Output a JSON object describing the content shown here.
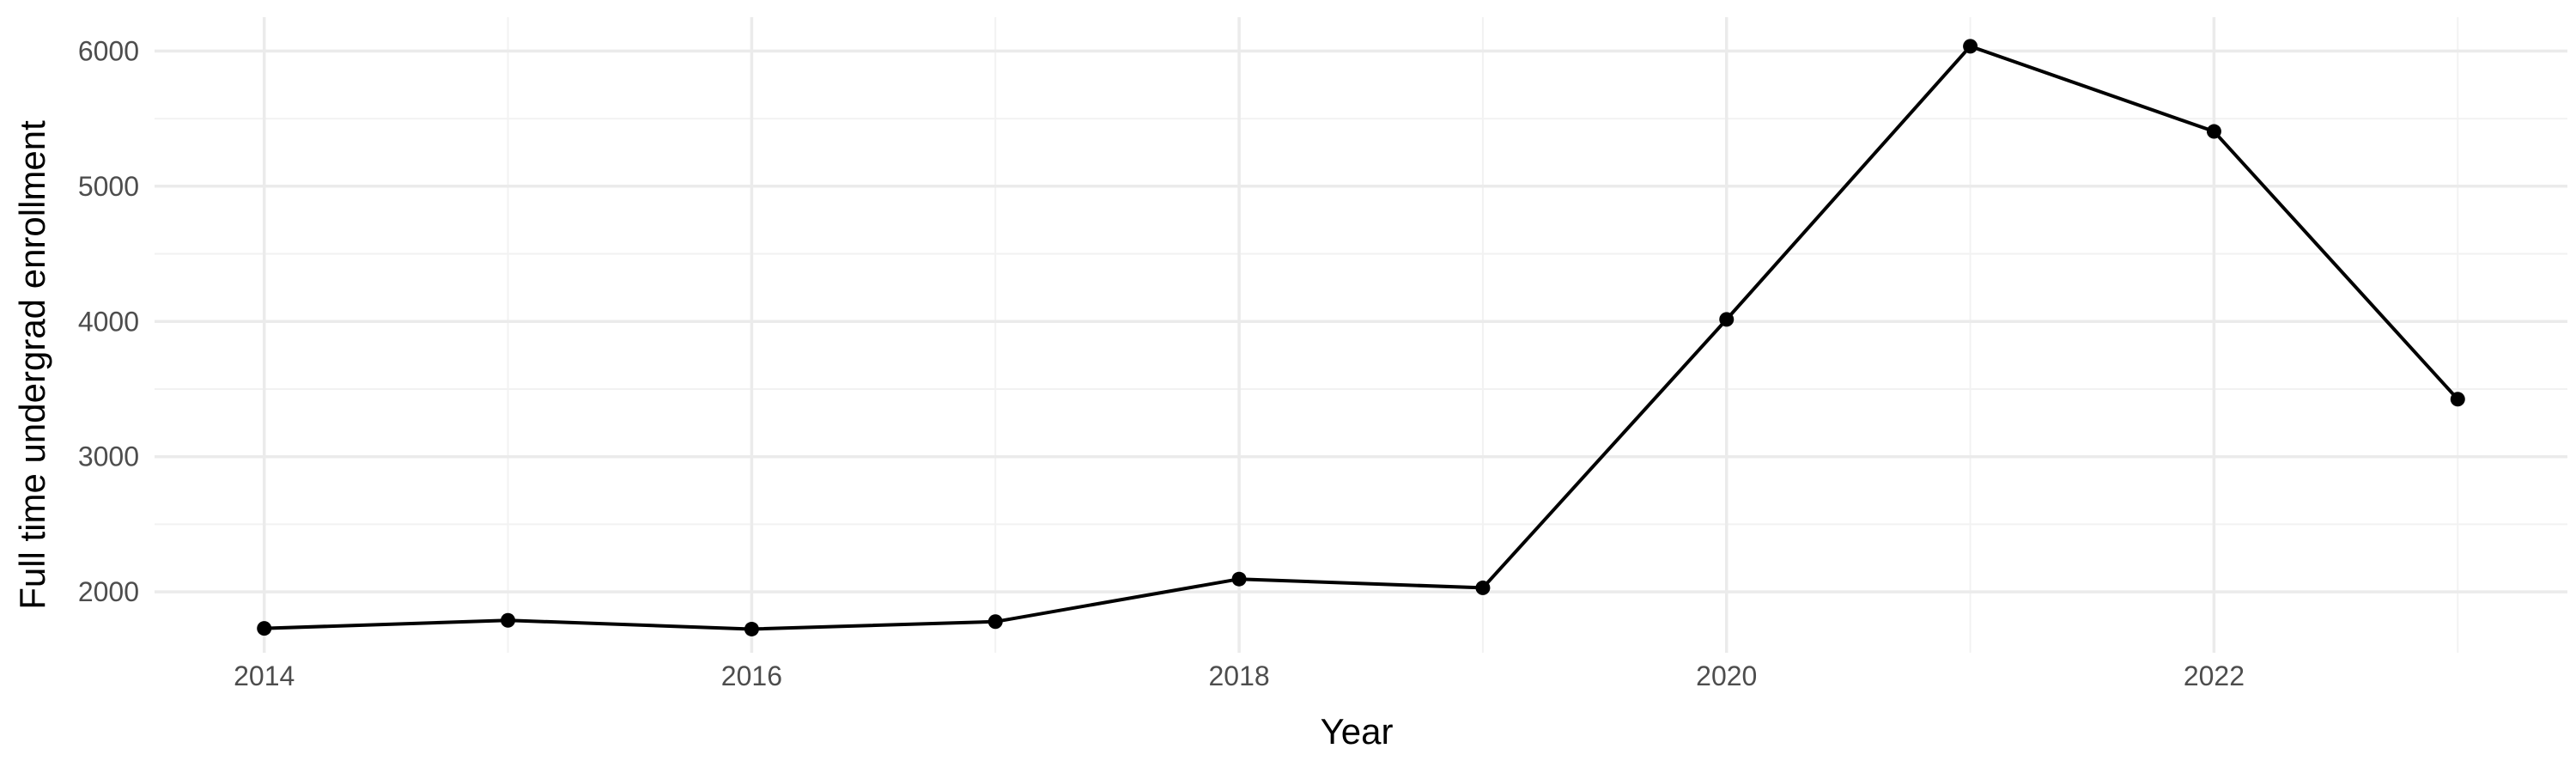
{
  "chart_data": {
    "type": "line",
    "title": "",
    "xlabel": "Year",
    "ylabel": "Full time undergrad enrollment",
    "x": [
      2014,
      2015,
      2016,
      2017,
      2018,
      2019,
      2020,
      2021,
      2022,
      2023
    ],
    "series": [
      {
        "values": [
          1730,
          1790,
          1725,
          1780,
          2095,
          2030,
          4015,
          6035,
          5405,
          3425
        ],
        "color": "#000000"
      }
    ],
    "xlim": [
      2013.55,
      2023.45
    ],
    "ylim": [
      1550,
      6250
    ],
    "x_ticks": [
      2014,
      2016,
      2018,
      2020,
      2022
    ],
    "x_tick_labels": [
      "2014",
      "2016",
      "2018",
      "2020",
      "2022"
    ],
    "y_ticks": [
      2000,
      3000,
      4000,
      5000,
      6000
    ],
    "y_tick_labels": [
      "2000",
      "3000",
      "4000",
      "5000",
      "6000"
    ],
    "grid": true,
    "legend": "none",
    "markers": true
  }
}
